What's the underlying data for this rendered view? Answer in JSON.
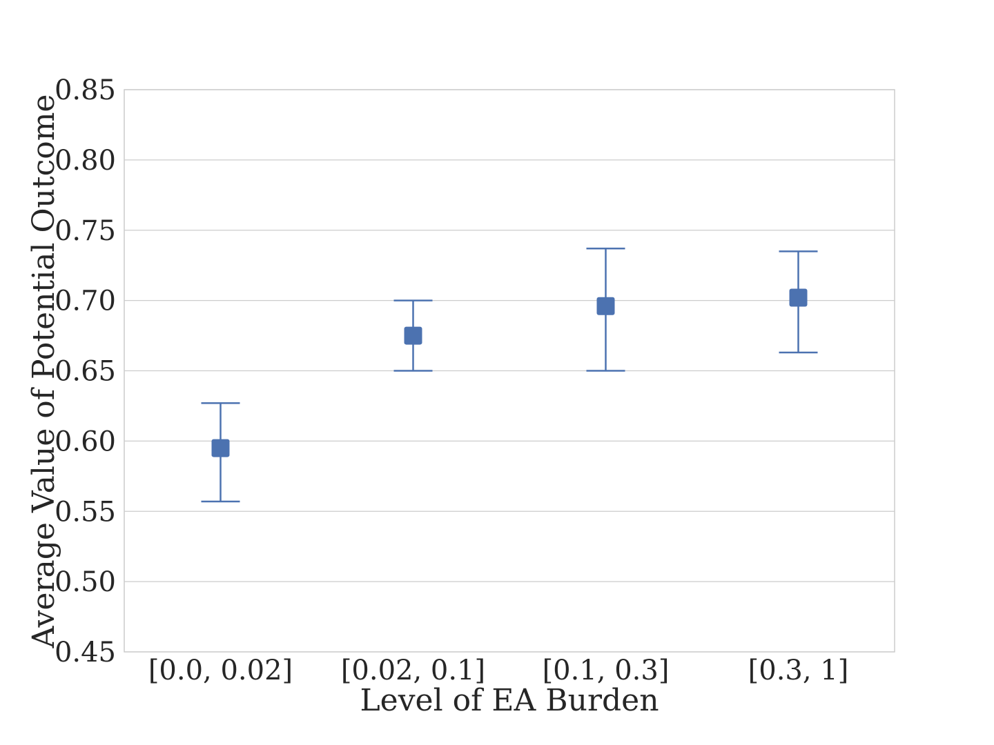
{
  "chart_data": {
    "type": "scatter",
    "title": "",
    "xlabel": "Level of EA Burden",
    "ylabel": "Average Value of Potential Outcome",
    "categories": [
      "[0.0, 0.02]",
      "[0.02, 0.1]",
      "[0.1, 0.3]",
      "[0.3, 1]"
    ],
    "series": [
      {
        "values": [
          0.595,
          0.675,
          0.696,
          0.702
        ],
        "error_low": [
          0.557,
          0.65,
          0.65,
          0.663
        ],
        "error_high": [
          0.627,
          0.7,
          0.737,
          0.735
        ],
        "marker": "square",
        "color": "#4c72b0"
      }
    ],
    "ylim": [
      0.45,
      0.85
    ],
    "yticks": [
      "0.45",
      "0.50",
      "0.55",
      "0.60",
      "0.65",
      "0.70",
      "0.75",
      "0.80",
      "0.85"
    ],
    "grid": "horizontal",
    "grid_color": "#cccccc",
    "frame_color": "#cccccc"
  }
}
